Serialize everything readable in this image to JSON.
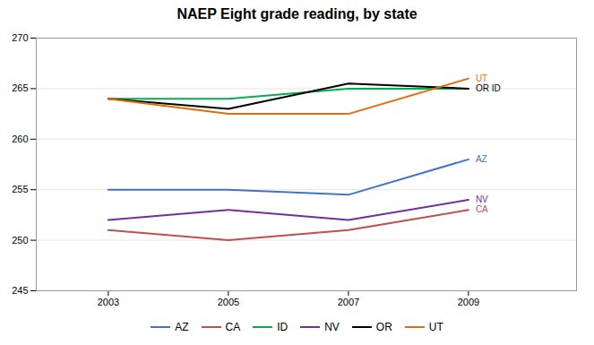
{
  "chart_data": {
    "type": "line",
    "title": "NAEP Eight grade reading, by state",
    "x": [
      2003,
      2005,
      2007,
      2009
    ],
    "series": [
      {
        "name": "AZ",
        "color": "#4472C4",
        "values": [
          255,
          255,
          254.5,
          258
        ]
      },
      {
        "name": "CA",
        "color": "#C0504D",
        "values": [
          251,
          250,
          251,
          253
        ]
      },
      {
        "name": "ID",
        "color": "#00B050",
        "values": [
          264,
          264,
          265,
          265
        ]
      },
      {
        "name": "NV",
        "color": "#7030A0",
        "values": [
          252,
          253,
          252,
          254
        ]
      },
      {
        "name": "OR",
        "color": "#000000",
        "values": [
          264,
          263,
          265.5,
          265
        ]
      },
      {
        "name": "UT",
        "color": "#E36C09",
        "values": [
          264,
          262.5,
          262.5,
          266
        ]
      }
    ],
    "annotations": [
      {
        "text": "UT",
        "x": 2009,
        "y": 266,
        "color": "#E36C09"
      },
      {
        "text": "OR ID",
        "x": 2009,
        "y": 265,
        "color": "#000000"
      },
      {
        "text": "AZ",
        "x": 2009,
        "y": 258,
        "color": "#4472C4"
      },
      {
        "text": "NV",
        "x": 2009,
        "y": 254,
        "color": "#7030A0"
      },
      {
        "text": "CA",
        "x": 2009,
        "y": 253,
        "color": "#C0504D"
      }
    ],
    "xlim": [
      2001.8,
      2010.8
    ],
    "xticks": [
      2003,
      2005,
      2007,
      2009
    ],
    "ylim": [
      245,
      270
    ],
    "yticks": [
      245,
      250,
      255,
      260,
      265,
      270
    ],
    "grid": true,
    "legend": "bottom"
  }
}
